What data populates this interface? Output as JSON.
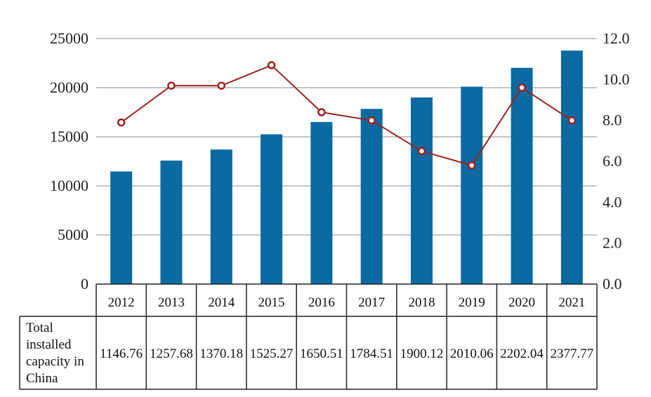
{
  "chart_data": {
    "type": "bar+line",
    "title": "",
    "categories": [
      "2012",
      "2013",
      "2014",
      "2015",
      "2016",
      "2017",
      "2018",
      "2019",
      "2020",
      "2021"
    ],
    "series": [
      {
        "name": "Total installed capacity in China",
        "type": "bar",
        "axis": "left",
        "values": [
          1146.76,
          1257.68,
          1370.18,
          1525.27,
          1650.51,
          1784.51,
          1900.12,
          2010.06,
          2202.04,
          2377.77
        ],
        "table_labels": [
          "1146.76",
          "1257.68",
          "1370.18",
          "1525.27",
          "1650.51",
          "1784.51",
          "1900.12",
          "2010.06",
          "2202.04",
          "2377.77"
        ]
      },
      {
        "type": "line",
        "axis": "right",
        "values": [
          7.9,
          9.7,
          9.7,
          10.7,
          8.4,
          8.0,
          6.5,
          5.8,
          9.6,
          8.0
        ]
      }
    ],
    "left_axis": {
      "ylim": [
        0,
        25000
      ],
      "ticks": [
        0,
        5000,
        10000,
        15000,
        20000,
        25000
      ],
      "tick_labels": [
        "0",
        "5000",
        "10000",
        "15000",
        "20000",
        "25000"
      ],
      "bar_value_multiplier": 10
    },
    "right_axis": {
      "ylim": [
        0,
        12
      ],
      "ticks": [
        0,
        2,
        4,
        6,
        8,
        10,
        12
      ],
      "tick_labels": [
        "0.0",
        "2.0",
        "4.0",
        "6.0",
        "8.0",
        "10.0",
        "12.0"
      ]
    },
    "table": {
      "row_label_lines": [
        "Total",
        "installed",
        "capacity in",
        "China"
      ]
    },
    "grid": true,
    "legend": "data table",
    "colors": {
      "bar": "#0a6aa1",
      "line": "#9b2320",
      "marker_fill": "#ffffff",
      "grid": "#b0b0b0",
      "table_border": "#222222"
    }
  }
}
